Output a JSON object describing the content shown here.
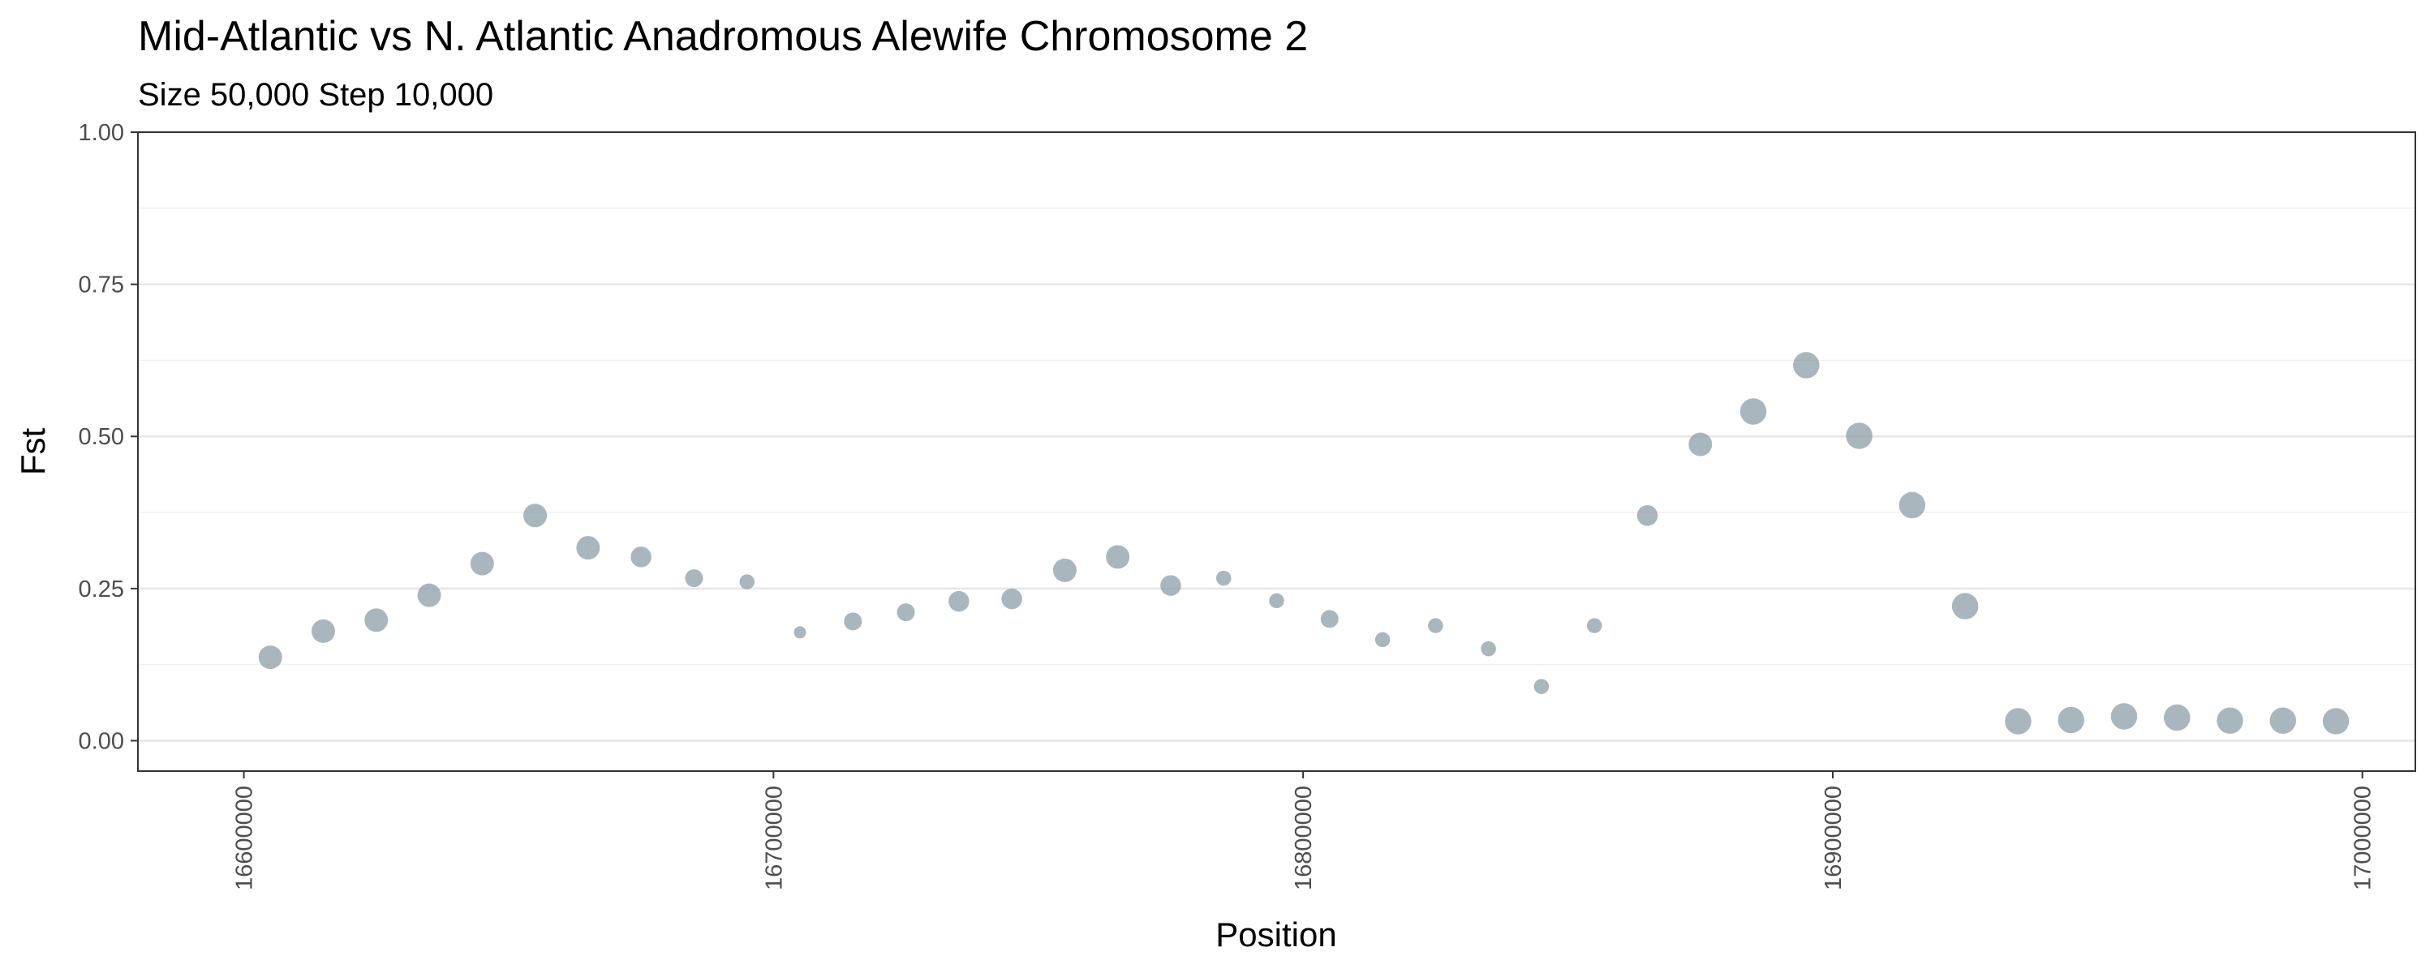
{
  "chart_data": {
    "type": "scatter",
    "title": "Mid-Atlantic vs N. Atlantic Anadromous Alewife Chromosome 2",
    "subtitle": "Size 50,000 Step 10,000",
    "xlabel": "Position",
    "ylabel": "Fst",
    "xlim": [
      16580000,
      17010000
    ],
    "ylim": [
      -0.05,
      1.0
    ],
    "x_ticks": [
      16600000,
      16700000,
      16800000,
      16900000,
      17000000
    ],
    "x_tick_labels": [
      "16600000",
      "16700000",
      "16800000",
      "16900000",
      "17000000"
    ],
    "y_ticks": [
      0,
      0.25,
      0.5,
      0.75,
      1.0
    ],
    "y_tick_labels": [
      "0.00",
      "0.25",
      "0.50",
      "0.75",
      "1.00"
    ],
    "grid": true,
    "point_color": "#8c9ea8",
    "note_point_size": "point size varies with Fst",
    "x": [
      16605000,
      16615000,
      16625000,
      16635000,
      16645000,
      16655000,
      16665000,
      16675000,
      16685000,
      16695000,
      16705000,
      16715000,
      16725000,
      16735000,
      16745000,
      16755000,
      16765000,
      16775000,
      16785000,
      16795000,
      16805000,
      16815000,
      16825000,
      16835000,
      16845000,
      16855000,
      16865000,
      16875000,
      16885000,
      16895000,
      16905000,
      16915000,
      16925000,
      16935000,
      16945000,
      16955000,
      16965000,
      16975000,
      16985000,
      16995000
    ],
    "y": [
      0.137,
      0.18,
      0.198,
      0.239,
      0.291,
      0.37,
      0.317,
      0.302,
      0.267,
      0.261,
      0.178,
      0.196,
      0.211,
      0.229,
      0.233,
      0.28,
      0.302,
      0.255,
      0.267,
      0.23,
      0.2,
      0.166,
      0.189,
      0.151,
      0.089,
      0.189,
      0.37,
      0.487,
      0.541,
      0.617,
      0.501,
      0.387,
      0.221,
      0.032,
      0.034,
      0.04,
      0.038,
      0.033,
      0.033,
      0.032
    ],
    "size": [
      3,
      3,
      3,
      3,
      3,
      3,
      3,
      2.5,
      2,
      1.5,
      1,
      2,
      2,
      2.5,
      2.5,
      3,
      3,
      2.5,
      1.5,
      1.5,
      2,
      1.5,
      1.5,
      1.5,
      1.5,
      1.5,
      2.5,
      3,
      3.5,
      3.5,
      3.5,
      3.5,
      3.5,
      3.5,
      3.5,
      3.5,
      3.5,
      3.5,
      3.5,
      3.5
    ]
  }
}
